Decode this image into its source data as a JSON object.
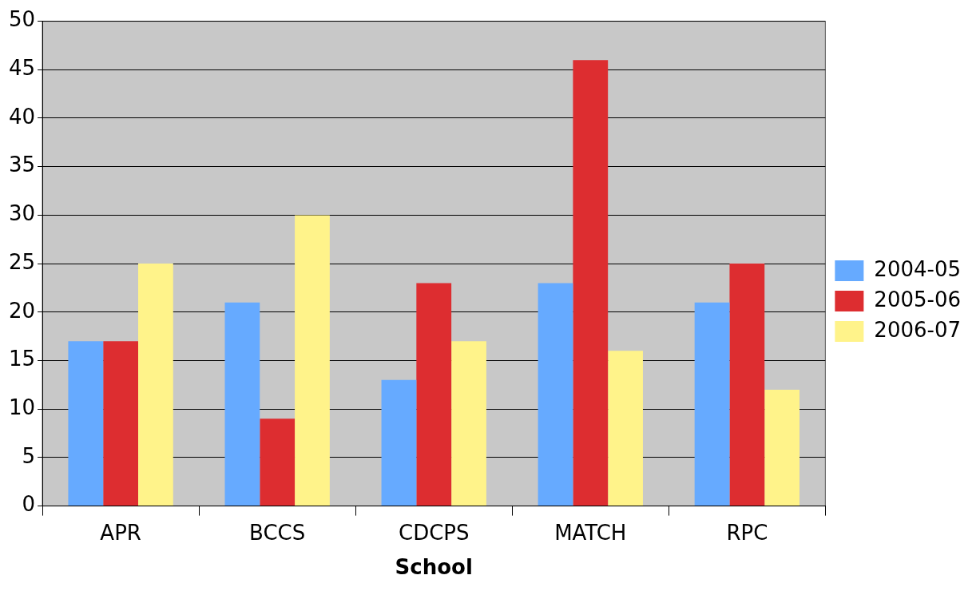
{
  "chart_data": {
    "type": "bar",
    "xlabel": "School",
    "categories": [
      "APR",
      "BCCS",
      "CDCPS",
      "MATCH",
      "RPC"
    ],
    "series": [
      {
        "name": "2004-05",
        "color": "#66aaff",
        "values": [
          17,
          21,
          13,
          23,
          21
        ]
      },
      {
        "name": "2005-06",
        "color": "#dd2d30",
        "values": [
          17,
          9,
          23,
          46,
          25
        ]
      },
      {
        "name": "2006-07",
        "color": "#fff38a",
        "values": [
          25,
          30,
          17,
          16,
          12
        ]
      }
    ],
    "ylim": [
      0,
      50
    ],
    "yticks": [
      0,
      5,
      10,
      15,
      20,
      25,
      30,
      35,
      40,
      45,
      50
    ],
    "grid": "y",
    "legend": "right"
  }
}
